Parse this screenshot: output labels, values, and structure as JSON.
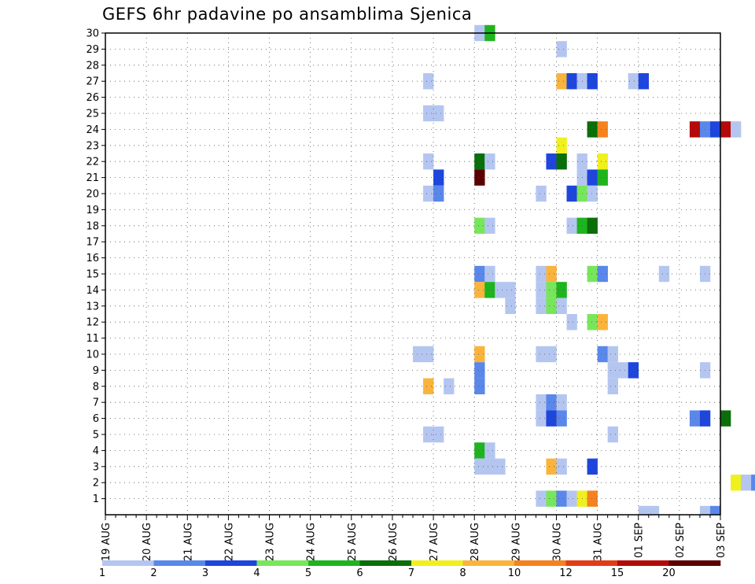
{
  "chart_data": {
    "type": "heatmap",
    "title": "GEFS 6hr padavine po ansamblima Sjenica",
    "y_ticks": [
      "1",
      "2",
      "3",
      "4",
      "5",
      "6",
      "7",
      "8",
      "9",
      "10",
      "11",
      "12",
      "13",
      "14",
      "15",
      "16",
      "17",
      "18",
      "19",
      "20",
      "21",
      "22",
      "23",
      "24",
      "25",
      "26",
      "27",
      "28",
      "29",
      "30"
    ],
    "x_ticks": [
      "19 AUG",
      "20 AUG",
      "21 AUG",
      "22 AUG",
      "23 AUG",
      "24 AUG",
      "25 AUG",
      "26 AUG",
      "27 AUG",
      "28 AUG",
      "29 AUG",
      "30 AUG",
      "31 AUG",
      "01 SEP",
      "02 SEP",
      "03 SEP"
    ],
    "x_range_steps": [
      0,
      60
    ],
    "y_range": [
      0,
      30
    ],
    "grid": true,
    "legend": {
      "placement": "bottom",
      "labels": [
        "1",
        "2",
        "3",
        "4",
        "5",
        "6",
        "7",
        "8",
        "10",
        "12",
        "15",
        "20"
      ],
      "colors": [
        "#b4c6f0",
        "#5a87ea",
        "#1e46dc",
        "#78e65a",
        "#1eb41e",
        "#0a6e0a",
        "#f0f01e",
        "#fab43c",
        "#f5821e",
        "#e13c14",
        "#b40a0a",
        "#5a0000"
      ]
    },
    "cells": [
      [
        36,
        30,
        1
      ],
      [
        37,
        30,
        5
      ],
      [
        44,
        29,
        1
      ],
      [
        75,
        29,
        4
      ],
      [
        76,
        29,
        10
      ],
      [
        77,
        29,
        2
      ],
      [
        77,
        28,
        2
      ],
      [
        78,
        28,
        1
      ],
      [
        82,
        28,
        7
      ],
      [
        83,
        28,
        4
      ],
      [
        31,
        27,
        1
      ],
      [
        44,
        27,
        9
      ],
      [
        45,
        27,
        3
      ],
      [
        46,
        27,
        1
      ],
      [
        47,
        27,
        3
      ],
      [
        51,
        27,
        1
      ],
      [
        52,
        27,
        3
      ],
      [
        31,
        25,
        1
      ],
      [
        32,
        25,
        1
      ],
      [
        47,
        24,
        6
      ],
      [
        48,
        24,
        10
      ],
      [
        57,
        24,
        15
      ],
      [
        58,
        24,
        2
      ],
      [
        59,
        24,
        3
      ],
      [
        60,
        24,
        15
      ],
      [
        61,
        24,
        1
      ],
      [
        71,
        24,
        3
      ],
      [
        72,
        24,
        1
      ],
      [
        74,
        24,
        3
      ],
      [
        75,
        24,
        3
      ],
      [
        44,
        23,
        7
      ],
      [
        68,
        23,
        1
      ],
      [
        31,
        22,
        1
      ],
      [
        36,
        22,
        6
      ],
      [
        37,
        22,
        1
      ],
      [
        43,
        22,
        3
      ],
      [
        44,
        22,
        6
      ],
      [
        46,
        22,
        1
      ],
      [
        48,
        22,
        7
      ],
      [
        32,
        21,
        3
      ],
      [
        36,
        21,
        20
      ],
      [
        46,
        21,
        1
      ],
      [
        47,
        21,
        3
      ],
      [
        48,
        21,
        5
      ],
      [
        79,
        21,
        1
      ],
      [
        82,
        21,
        3
      ],
      [
        31,
        20,
        1
      ],
      [
        32,
        20,
        2
      ],
      [
        42,
        20,
        1
      ],
      [
        45,
        20,
        3
      ],
      [
        46,
        20,
        4
      ],
      [
        47,
        20,
        1
      ],
      [
        36,
        18,
        4
      ],
      [
        37,
        18,
        1
      ],
      [
        45,
        18,
        1
      ],
      [
        46,
        18,
        5
      ],
      [
        47,
        18,
        6
      ],
      [
        82,
        16,
        2
      ],
      [
        36,
        15,
        2
      ],
      [
        37,
        15,
        1
      ],
      [
        42,
        15,
        1
      ],
      [
        43,
        15,
        8
      ],
      [
        47,
        15,
        4
      ],
      [
        48,
        15,
        2
      ],
      [
        54,
        15,
        1
      ],
      [
        58,
        15,
        1
      ],
      [
        72,
        15,
        1
      ],
      [
        75,
        15,
        2
      ],
      [
        36,
        14,
        8
      ],
      [
        37,
        14,
        5
      ],
      [
        38,
        14,
        1
      ],
      [
        39,
        14,
        1
      ],
      [
        42,
        14,
        1
      ],
      [
        43,
        14,
        4
      ],
      [
        44,
        14,
        5
      ],
      [
        76,
        14,
        1
      ],
      [
        77,
        14,
        1
      ],
      [
        39,
        13,
        1
      ],
      [
        42,
        13,
        1
      ],
      [
        43,
        13,
        4
      ],
      [
        44,
        13,
        1
      ],
      [
        45,
        12,
        1
      ],
      [
        47,
        12,
        4
      ],
      [
        48,
        12,
        8
      ],
      [
        82,
        11,
        1
      ],
      [
        30,
        10,
        1
      ],
      [
        31,
        10,
        1
      ],
      [
        36,
        10,
        8
      ],
      [
        42,
        10,
        1
      ],
      [
        43,
        10,
        1
      ],
      [
        48,
        10,
        2
      ],
      [
        49,
        10,
        1
      ],
      [
        68,
        10,
        1
      ],
      [
        36,
        9,
        2
      ],
      [
        49,
        9,
        1
      ],
      [
        50,
        9,
        1
      ],
      [
        51,
        9,
        3
      ],
      [
        58,
        9,
        1
      ],
      [
        31,
        8,
        8
      ],
      [
        33,
        8,
        1
      ],
      [
        36,
        8,
        2
      ],
      [
        49,
        8,
        1
      ],
      [
        68,
        8,
        1
      ],
      [
        69,
        8,
        1
      ],
      [
        42,
        7,
        1
      ],
      [
        43,
        7,
        2
      ],
      [
        44,
        7,
        1
      ],
      [
        67,
        7,
        1
      ],
      [
        68,
        7,
        15
      ],
      [
        69,
        7,
        10
      ],
      [
        70,
        7,
        2
      ],
      [
        71,
        7,
        12
      ],
      [
        72,
        7,
        20
      ],
      [
        73,
        7,
        12
      ],
      [
        74,
        7,
        3
      ],
      [
        75,
        7,
        1
      ],
      [
        76,
        7,
        2
      ],
      [
        77,
        7,
        1
      ],
      [
        83,
        7,
        1
      ],
      [
        42,
        6,
        1
      ],
      [
        43,
        6,
        3
      ],
      [
        44,
        6,
        2
      ],
      [
        57,
        6,
        2
      ],
      [
        58,
        6,
        3
      ],
      [
        60,
        6,
        6
      ],
      [
        73,
        6,
        7
      ],
      [
        74,
        6,
        8
      ],
      [
        75,
        6,
        4
      ],
      [
        76,
        6,
        3
      ],
      [
        77,
        6,
        1
      ],
      [
        78,
        6,
        1
      ],
      [
        82,
        6,
        1
      ],
      [
        31,
        5,
        1
      ],
      [
        32,
        5,
        1
      ],
      [
        49,
        5,
        1
      ],
      [
        68,
        5,
        1
      ],
      [
        69,
        5,
        15
      ],
      [
        70,
        5,
        4
      ],
      [
        71,
        5,
        1
      ],
      [
        77,
        5,
        1
      ],
      [
        78,
        5,
        1
      ],
      [
        79,
        5,
        1
      ],
      [
        80,
        5,
        1
      ],
      [
        81,
        5,
        1
      ],
      [
        82,
        5,
        1
      ],
      [
        36,
        4,
        5
      ],
      [
        37,
        4,
        1
      ],
      [
        67,
        4,
        3
      ],
      [
        69,
        4,
        1
      ],
      [
        72,
        4,
        1
      ],
      [
        36,
        3,
        1
      ],
      [
        37,
        3,
        1
      ],
      [
        38,
        3,
        1
      ],
      [
        43,
        3,
        8
      ],
      [
        44,
        3,
        1
      ],
      [
        47,
        3,
        3
      ],
      [
        69,
        3,
        1
      ],
      [
        70,
        3,
        1
      ],
      [
        71,
        3,
        12
      ],
      [
        61,
        2,
        7
      ],
      [
        62,
        2,
        1
      ],
      [
        63,
        2,
        2
      ],
      [
        42,
        1,
        1
      ],
      [
        43,
        1,
        4
      ],
      [
        44,
        1,
        2
      ],
      [
        45,
        1,
        1
      ],
      [
        46,
        1,
        7
      ],
      [
        47,
        1,
        10
      ],
      [
        52,
        0,
        1
      ],
      [
        53,
        0,
        1
      ],
      [
        58,
        0,
        1
      ],
      [
        59,
        0,
        2
      ],
      [
        69,
        0,
        7
      ],
      [
        75,
        0,
        1
      ],
      [
        76,
        0,
        1
      ],
      [
        77,
        0,
        10
      ],
      [
        78,
        0,
        4
      ],
      [
        79,
        0,
        2
      ],
      [
        80,
        0,
        6
      ],
      [
        81,
        0,
        3
      ]
    ]
  }
}
